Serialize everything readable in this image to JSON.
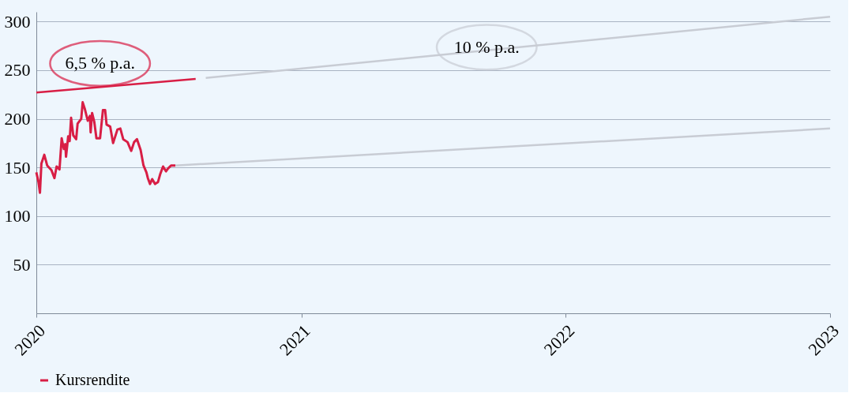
{
  "chart_data": {
    "type": "line",
    "xlim": [
      "2020",
      "2023"
    ],
    "xticks": [
      "2020",
      "2021",
      "2022",
      "2023"
    ],
    "ylim": [
      0,
      310
    ],
    "yticks": [
      50,
      100,
      150,
      200,
      250,
      300
    ],
    "grid": "y",
    "legend": "bottom",
    "line_style": "solid",
    "marker": "none",
    "annotations": [
      "6,5 % p.a.",
      "10 % p.a."
    ],
    "series": [
      {
        "name": "Kursrendite",
        "color": "#d81e45",
        "x": [
          "2020-01-01",
          "2020-01-04",
          "2020-01-06",
          "2020-01-08",
          "2020-01-12",
          "2020-01-16",
          "2020-01-22",
          "2020-01-26",
          "2020-01-29",
          "2020-02-02",
          "2020-02-05",
          "2020-02-08",
          "2020-02-10",
          "2020-02-11",
          "2020-02-14",
          "2020-02-16",
          "2020-02-18",
          "2020-02-21",
          "2020-02-25",
          "2020-02-27",
          "2020-03-03",
          "2020-03-05",
          "2020-03-08",
          "2020-03-12",
          "2020-03-15",
          "2020-03-16",
          "2020-03-18",
          "2020-03-21",
          "2020-03-24",
          "2020-03-29",
          "2020-04-02",
          "2020-04-05",
          "2020-04-07",
          "2020-04-12",
          "2020-04-16",
          "2020-04-22",
          "2020-04-26",
          "2020-04-30",
          "2020-05-06",
          "2020-05-11",
          "2020-05-15",
          "2020-05-19",
          "2020-05-24",
          "2020-05-28",
          "2020-06-01",
          "2020-06-03",
          "2020-06-06",
          "2020-06-09",
          "2020-06-13",
          "2020-06-17",
          "2020-06-20",
          "2020-06-24",
          "2020-06-28",
          "2020-07-01",
          "2020-07-05",
          "2020-07-11"
        ],
        "values": [
          145,
          135,
          124,
          154,
          163,
          152,
          147,
          139,
          151,
          148,
          180,
          169,
          174,
          161,
          182,
          177,
          201,
          183,
          179,
          195,
          200,
          217,
          210,
          198,
          203,
          186,
          206,
          197,
          180,
          180,
          209,
          209,
          194,
          192,
          175,
          189,
          190,
          179,
          176,
          167,
          176,
          179,
          168,
          152,
          145,
          139,
          133,
          138,
          133,
          135,
          143,
          151,
          146,
          149,
          152,
          152
        ]
      },
      {
        "color": "#c8ccd4",
        "x": [
          "2020-07-11",
          "2023-01-01"
        ],
        "values": [
          152,
          190
        ]
      },
      {
        "color": "#d81e45",
        "x": [
          "2020-01-01",
          "2020-08-08"
        ],
        "values": [
          227,
          241
        ]
      },
      {
        "color": "#c8ccd4",
        "x": [
          "2020-08-22",
          "2023-01-01"
        ],
        "values": [
          242,
          305
        ]
      }
    ]
  }
}
